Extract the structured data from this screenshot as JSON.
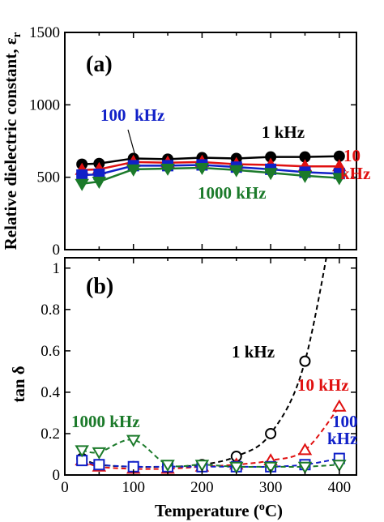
{
  "chart_data": [
    {
      "type": "line",
      "panel_label": "(a)",
      "ylabel": "Relative dielectric constant, ε",
      "ylabel_sub": "r",
      "ylim": [
        0,
        1500
      ],
      "yticks": [
        "0",
        "500",
        "1000",
        "1500"
      ],
      "xlim": [
        0,
        425
      ],
      "grid": false,
      "x": [
        25,
        50,
        100,
        150,
        200,
        250,
        300,
        350,
        400
      ],
      "series": [
        {
          "name": "1 kHz",
          "color": "#000000",
          "marker": "circle",
          "fill": true,
          "dash": false,
          "values": [
            590,
            595,
            630,
            625,
            635,
            630,
            640,
            640,
            645
          ]
        },
        {
          "name": "10 kHz",
          "color": "#e01010",
          "marker": "triangle-up",
          "fill": true,
          "dash": false,
          "values": [
            550,
            555,
            605,
            600,
            605,
            590,
            585,
            575,
            575
          ]
        },
        {
          "name": "100 kHz",
          "color": "#1020c8",
          "marker": "square",
          "fill": true,
          "dash": false,
          "values": [
            515,
            520,
            580,
            580,
            585,
            570,
            555,
            535,
            525
          ]
        },
        {
          "name": "1000 kHz",
          "color": "#1b7a2a",
          "marker": "triangle-down",
          "fill": true,
          "dash": false,
          "values": [
            455,
            470,
            555,
            560,
            565,
            550,
            530,
            510,
            495
          ]
        }
      ],
      "annotations": [
        {
          "text": "100  kHz",
          "color": "#1020c8"
        },
        {
          "text": "1 kHz",
          "color": "#000000"
        },
        {
          "text": "10",
          "color": "#e01010"
        },
        {
          "text": "kHz",
          "color": "#e01010"
        },
        {
          "text": "1000 kHz",
          "color": "#1b7a2a"
        }
      ]
    },
    {
      "type": "line",
      "panel_label": "(b)",
      "ylabel": "tan δ",
      "xlabel": "Temperature (",
      "xlabel_sup": "o",
      "xlabel_end": "C)",
      "ylim": [
        0,
        1.05
      ],
      "yticks": [
        "0",
        "0.2",
        "0.4",
        "0.6",
        "0.8",
        "1"
      ],
      "xlim": [
        0,
        425
      ],
      "xticks": [
        "0",
        "100",
        "200",
        "300",
        "400"
      ],
      "grid": false,
      "x": [
        25,
        50,
        100,
        150,
        200,
        250,
        300,
        350,
        400
      ],
      "series": [
        {
          "name": "1 kHz",
          "color": "#000000",
          "marker": "circle",
          "fill": false,
          "dash": true,
          "values": [
            0.08,
            0.05,
            0.04,
            0.04,
            0.05,
            0.09,
            0.2,
            0.55,
            1.4
          ]
        },
        {
          "name": "10 kHz",
          "color": "#e01010",
          "marker": "triangle-up",
          "fill": false,
          "dash": true,
          "values": [
            0.07,
            0.04,
            0.03,
            0.03,
            0.04,
            0.05,
            0.07,
            0.12,
            0.33
          ]
        },
        {
          "name": "100 kHz",
          "color": "#1020c8",
          "marker": "square",
          "fill": false,
          "dash": true,
          "values": [
            0.07,
            0.05,
            0.04,
            0.04,
            0.04,
            0.04,
            0.04,
            0.05,
            0.08
          ]
        },
        {
          "name": "1000 kHz",
          "color": "#1b7a2a",
          "marker": "triangle-down",
          "fill": false,
          "dash": true,
          "values": [
            0.12,
            0.11,
            0.17,
            0.05,
            0.05,
            0.04,
            0.04,
            0.04,
            0.05
          ]
        }
      ],
      "annotations": [
        {
          "text": "1 kHz",
          "color": "#000000"
        },
        {
          "text": "10 kHz",
          "color": "#e01010"
        },
        {
          "text": "100",
          "color": "#1020c8"
        },
        {
          "text": "kHz",
          "color": "#1020c8"
        },
        {
          "text": "1000 kHz",
          "color": "#1b7a2a"
        }
      ]
    }
  ]
}
